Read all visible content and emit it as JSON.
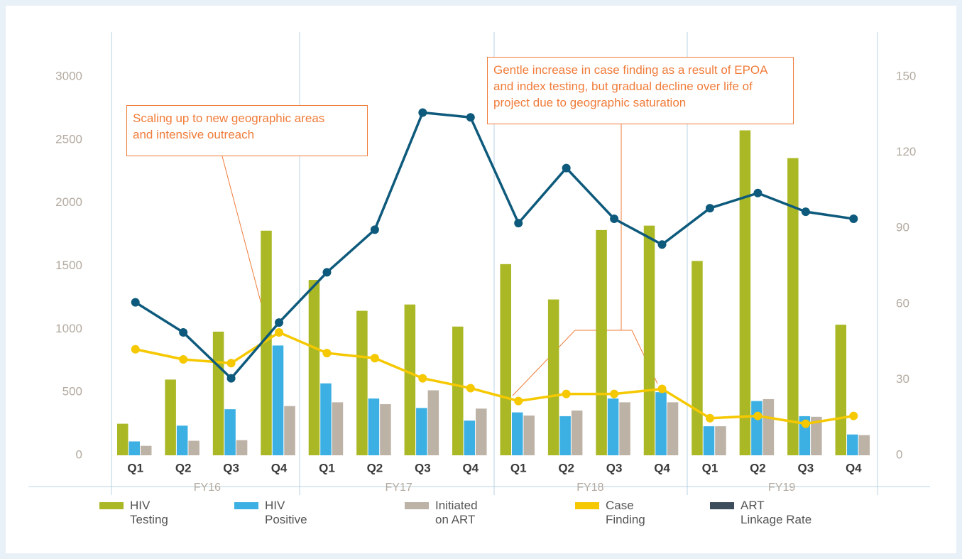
{
  "chart_data": {
    "type": "bar",
    "categories": [
      "Q1",
      "Q2",
      "Q3",
      "Q4",
      "Q1",
      "Q2",
      "Q3",
      "Q4",
      "Q1",
      "Q2",
      "Q3",
      "Q4",
      "Q1",
      "Q2",
      "Q3",
      "Q4"
    ],
    "group_labels": [
      "FY16",
      "FY17",
      "FY18",
      "FY19"
    ],
    "annotations": [
      "Scaling up to new geographic areas\nand intensive outreach",
      "Gentle increase in case finding as a result of EPOA\nand index testing, but gradual decline over life of\nproject due to geographic saturation"
    ],
    "ylim": [
      0,
      3000
    ],
    "yticks": [
      0,
      500,
      1000,
      1500,
      2000,
      2500,
      3000
    ],
    "y2lim": [
      0,
      150
    ],
    "y2ticks": [
      0,
      30,
      60,
      90,
      120,
      150
    ],
    "series": [
      {
        "name": "HIV\nTesting",
        "color": "#aab825",
        "type": "bar",
        "values": [
          250,
          600,
          980,
          1780,
          1390,
          1145,
          1195,
          1020,
          1515,
          1235,
          1785,
          1820,
          1540,
          2575,
          2355,
          1035
        ]
      },
      {
        "name": "HIV\nPositive",
        "color": "#3db0e3",
        "type": "bar",
        "values": [
          110,
          235,
          365,
          870,
          570,
          450,
          375,
          275,
          340,
          310,
          450,
          500,
          230,
          430,
          310,
          165
        ]
      },
      {
        "name": "Initiated\non ART",
        "color": "#bdb2a6",
        "type": "bar",
        "values": [
          75,
          115,
          120,
          390,
          420,
          405,
          515,
          370,
          315,
          355,
          420,
          420,
          230,
          445,
          305,
          160
        ]
      },
      {
        "name": "Case\nFinding",
        "color": "#f5c800",
        "type": "line",
        "axis": "y2",
        "values": [
          42,
          38,
          36.5,
          48.7,
          40.5,
          38.5,
          30.5,
          26.6,
          21.5,
          24.3,
          24.3,
          26.3,
          14.7,
          15.6,
          12.5,
          15.6
        ]
      },
      {
        "name": "ART\nLinkage Rate",
        "color": "#0e5a7c",
        "type": "line",
        "axis": "y2",
        "values": [
          60.6,
          48.7,
          30.5,
          52.6,
          72.5,
          89.4,
          135.8,
          133.9,
          92,
          113.8,
          93.7,
          83.5,
          97.9,
          103.9,
          96.5,
          93.7
        ]
      }
    ]
  }
}
